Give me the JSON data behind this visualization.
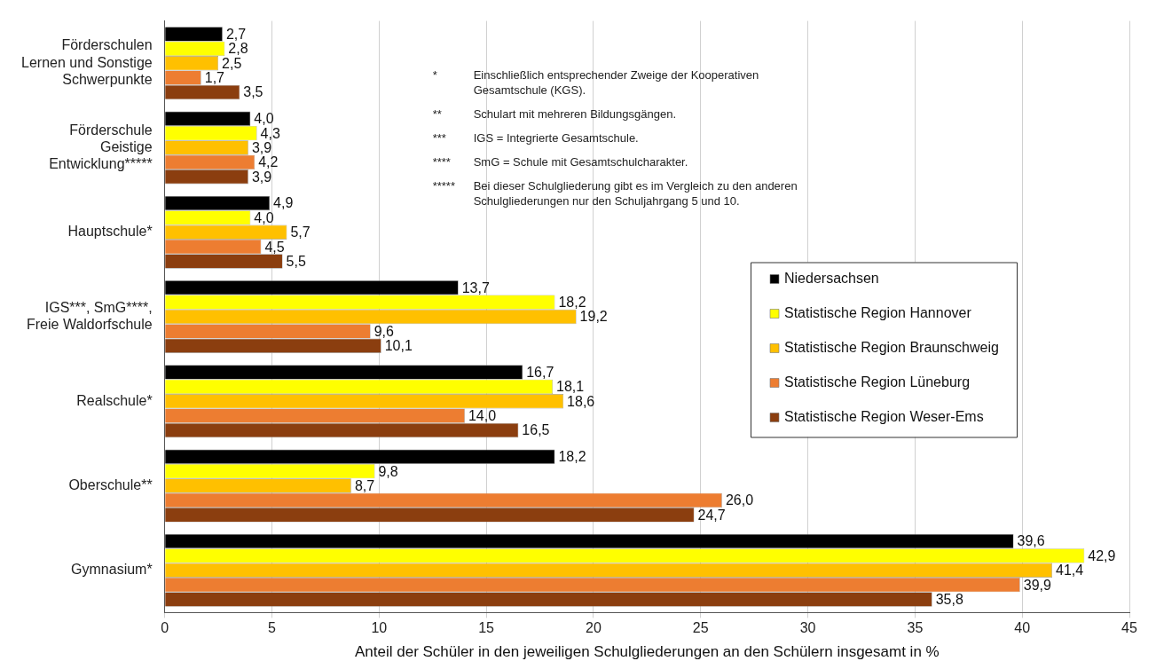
{
  "chart_data": {
    "type": "bar",
    "orientation": "horizontal",
    "categories": [
      "Förderschulen Lernen und Sonstige Schwerpunkte",
      "Förderschule Geistige Entwicklung*****",
      "Hauptschule*",
      "IGS***, SmG****, Freie Waldorfschule",
      "Realschule*",
      "Oberschule**",
      "Gymnasium*"
    ],
    "series": [
      {
        "name": "Niedersachsen",
        "color": "#000000",
        "values": [
          2.7,
          4.0,
          4.9,
          13.7,
          16.7,
          18.2,
          39.6
        ],
        "value_labels": [
          "2,7",
          "4,0",
          "4,9",
          "13,7",
          "16,7",
          "18,2",
          "39,6"
        ]
      },
      {
        "name": "Statistische Region Hannover",
        "color": "#ffff00",
        "values": [
          2.8,
          4.3,
          4.0,
          18.2,
          18.1,
          9.8,
          42.9
        ],
        "value_labels": [
          "2,8",
          "4,3",
          "4,0",
          "18,2",
          "18,1",
          "9,8",
          "42,9"
        ]
      },
      {
        "name": "Statistische Region Braunschweig",
        "color": "#ffc000",
        "values": [
          2.5,
          3.9,
          5.7,
          19.2,
          18.6,
          8.7,
          41.4
        ],
        "value_labels": [
          "2,5",
          "3,9",
          "5,7",
          "19,2",
          "18,6",
          "8,7",
          "41,4"
        ]
      },
      {
        "name": "Statistische Region Lüneburg",
        "color": "#ed7d31",
        "values": [
          1.7,
          4.2,
          4.5,
          9.6,
          14.0,
          26.0,
          39.9
        ],
        "value_labels": [
          "1,7",
          "4,2",
          "4,5",
          "9,6",
          "14,0",
          "26,0",
          "39,9"
        ]
      },
      {
        "name": "Statistische Region Weser-Ems",
        "color": "#8b3e0f",
        "values": [
          3.5,
          3.9,
          5.5,
          10.1,
          16.5,
          24.7,
          35.8
        ],
        "value_labels": [
          "3,5",
          "3,9",
          "5,5",
          "10,1",
          "16,5",
          "24,7",
          "35,8"
        ]
      }
    ],
    "xlim": [
      0,
      45
    ],
    "xticks": [
      0,
      5,
      10,
      15,
      20,
      25,
      30,
      35,
      40,
      45
    ],
    "xlabel": "Anteil der Schüler in den jeweiligen Schulgliederungen an den Schülern insgesamt in %",
    "grid": "x",
    "legend": "right",
    "annotations": [
      "* Einschließlich entsprechender Zweige der Kooperativen Gesamtschule (KGS).",
      "** Schulart mit mehreren Bildungsgängen.",
      "*** IGS = Integrierte Gesamtschule.",
      "**** SmG = Schule mit Gesamtschulcharakter.",
      "***** Bei dieser Schulgliederung gibt es im Vergleich zu den anderen Schulgliederungen nur den Schuljahrgang 5 und 10."
    ]
  }
}
